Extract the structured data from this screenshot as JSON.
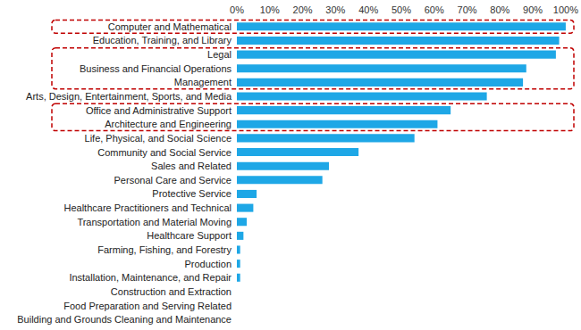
{
  "chart_data": {
    "type": "bar",
    "orientation": "horizontal",
    "categories": [
      "Computer and Mathematical",
      "Education, Training, and Library",
      "Legal",
      "Business and Financial Operations",
      "Management",
      "Arts, Design, Entertainment, Sports, and Media",
      "Office and Administrative Support",
      "Architecture and Engineering",
      "Life, Physical, and Social Science",
      "Community and Social Service",
      "Sales and Related",
      "Personal Care and Service",
      "Protective Service",
      "Healthcare Practitioners and Technical",
      "Transportation and Material Moving",
      "Healthcare Support",
      "Farming, Fishing, and Forestry",
      "Production",
      "Installation, Maintenance, and Repair",
      "Construction and Extraction",
      "Food Preparation and Serving Related",
      "Building and Grounds Cleaning and Maintenance"
    ],
    "values": [
      100,
      98,
      97,
      88,
      87,
      76,
      65,
      61,
      54,
      37,
      28,
      26,
      6,
      5,
      3,
      2,
      1,
      1,
      1,
      0,
      0,
      0
    ],
    "color": "#1ea7e6",
    "xlim": [
      0,
      100
    ],
    "xticks": [
      {
        "value": 0,
        "label": "0%"
      },
      {
        "value": 10,
        "label": "10%"
      },
      {
        "value": 20,
        "label": "20%"
      },
      {
        "value": 30,
        "label": "30%"
      },
      {
        "value": 40,
        "label": "40%"
      },
      {
        "value": 50,
        "label": "50%"
      },
      {
        "value": 60,
        "label": "60%"
      },
      {
        "value": 70,
        "label": "70%"
      },
      {
        "value": 80,
        "label": "80%"
      },
      {
        "value": 90,
        "label": "90%"
      },
      {
        "value": 100,
        "label": "100%"
      }
    ],
    "grid": false
  }
}
